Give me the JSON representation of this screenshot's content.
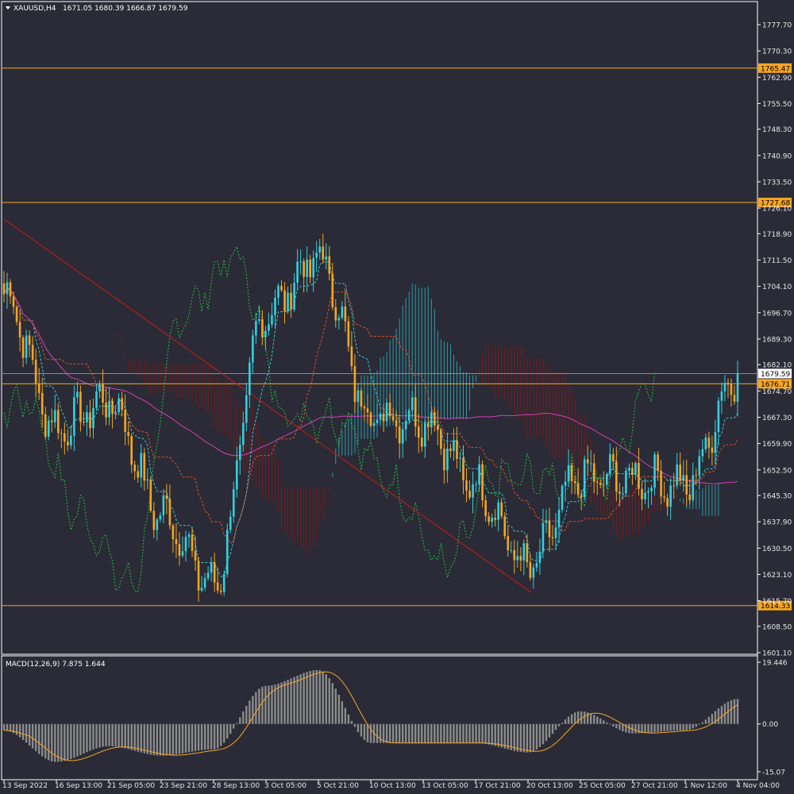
{
  "header": {
    "symbol": "XAUUSD,H4",
    "ohlc": "1671.05 1680.39 1666.87 1679.59"
  },
  "colors": {
    "background": "#2a2b36",
    "bull": "#33d0e0",
    "bear": "#f5a623",
    "level_line": "#f5a623",
    "trendline": "#d01818",
    "ma_slow": "#d43fb5",
    "cloud_bull": "#2bb6c2",
    "cloud_bear": "#8a1616",
    "tenkan": "#38c8d8",
    "kijun": "#e0502a",
    "chikou": "#22c03a",
    "macd_hist": "#8c8c8c",
    "macd_signal": "#f5a623"
  },
  "price_axis": {
    "ticks": [
      "1777.70",
      "1770.30",
      "1762.90",
      "1755.50",
      "1748.30",
      "1740.90",
      "1733.50",
      "1726.10",
      "1718.90",
      "1711.50",
      "1704.10",
      "1696.70",
      "1689.30",
      "1682.10",
      "1674.70",
      "1667.30",
      "1659.90",
      "1652.50",
      "1645.30",
      "1637.90",
      "1630.50",
      "1623.10",
      "1615.70",
      "1608.50",
      "1601.10"
    ],
    "min": 1601.1,
    "max": 1777.7
  },
  "level_lines": [
    {
      "label": "1765.47",
      "price": 1765.47
    },
    {
      "label": "1727.68",
      "price": 1727.68
    },
    {
      "label": "1676.71",
      "price": 1676.71
    },
    {
      "label": "1614.33",
      "price": 1614.33
    }
  ],
  "current_price": {
    "label": "1679.59",
    "price": 1679.59
  },
  "time_axis": [
    "13 Sep 2022",
    "16 Sep 13:00",
    "21 Sep 05:00",
    "23 Sep 21:00",
    "28 Sep 13:00",
    "3 Oct 05:00",
    "5 Oct 21:00",
    "10 Oct 13:00",
    "13 Oct 05:00",
    "17 Oct 21:00",
    "20 Oct 13:00",
    "25 Oct 05:00",
    "27 Oct 21:00",
    "1 Nov 12:00",
    "4 Nov 04:00"
  ],
  "macd": {
    "label": "MACD(12,26,9) 7.875 1.644",
    "ticks": [
      "19.446",
      "0.00",
      "-15.07"
    ],
    "max": 19.446,
    "min": -15.07
  },
  "chart_data": {
    "type": "candlestick",
    "symbol": "XAUUSD",
    "timeframe": "H4",
    "ylim": [
      1601.1,
      1777.7
    ],
    "close_path": [
      {
        "x": "13 Sep 2022",
        "y": 1702
      },
      {
        "x": "16 Sep 13:00",
        "y": 1664
      },
      {
        "x": "21 Sep 05:00",
        "y": 1672
      },
      {
        "x": "23 Sep 21:00",
        "y": 1640
      },
      {
        "x": "28 Sep 13:00",
        "y": 1620
      },
      {
        "x": "3 Oct 05:00",
        "y": 1697
      },
      {
        "x": "5 Oct 21:00",
        "y": 1712
      },
      {
        "x": "10 Oct 13:00",
        "y": 1668
      },
      {
        "x": "13 Oct 05:00",
        "y": 1667
      },
      {
        "x": "17 Oct 21:00",
        "y": 1648
      },
      {
        "x": "20 Oct 13:00",
        "y": 1625
      },
      {
        "x": "25 Oct 05:00",
        "y": 1650
      },
      {
        "x": "27 Oct 21:00",
        "y": 1650
      },
      {
        "x": "1 Nov 12:00",
        "y": 1648
      },
      {
        "x": "4 Nov 04:00",
        "y": 1679.59
      }
    ],
    "macd_hist_path": [
      {
        "x": "13 Sep 2022",
        "y": -2
      },
      {
        "x": "16 Sep 13:00",
        "y": -12
      },
      {
        "x": "21 Sep 05:00",
        "y": -7
      },
      {
        "x": "23 Sep 21:00",
        "y": -10
      },
      {
        "x": "28 Sep 13:00",
        "y": -8
      },
      {
        "x": "3 Oct 05:00",
        "y": 12
      },
      {
        "x": "5 Oct 21:00",
        "y": 17
      },
      {
        "x": "10 Oct 13:00",
        "y": -6
      },
      {
        "x": "13 Oct 05:00",
        "y": -6
      },
      {
        "x": "17 Oct 21:00",
        "y": -6
      },
      {
        "x": "20 Oct 13:00",
        "y": -9
      },
      {
        "x": "25 Oct 05:00",
        "y": 4
      },
      {
        "x": "27 Oct 21:00",
        "y": -3
      },
      {
        "x": "1 Nov 12:00",
        "y": -2
      },
      {
        "x": "4 Nov 04:00",
        "y": 7.875
      }
    ]
  }
}
